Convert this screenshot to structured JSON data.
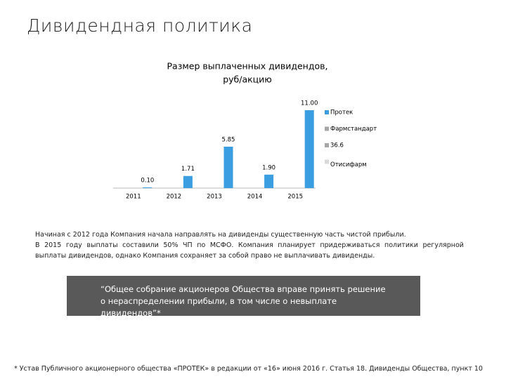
{
  "title": "Дивидендная политика",
  "chart_data": {
    "type": "bar",
    "title": [
      "Размер выплаченных дивидендов,",
      "руб/акцию"
    ],
    "categories": [
      "2011",
      "2012",
      "2013",
      "2014",
      "2015"
    ],
    "series": [
      {
        "name": "Протек",
        "color": "#3a9ee0",
        "values": [
          0.1,
          1.71,
          5.85,
          1.9,
          11
        ],
        "value_labels": [
          "0.10",
          "1.71",
          "5.85",
          "1.90",
          "11.00"
        ]
      },
      {
        "name": "Фармстандарт",
        "color": "#a6a6a6",
        "values": [
          null,
          null,
          null,
          null,
          null
        ]
      },
      {
        "name": "36.6",
        "color": "#a6a6a6",
        "values": [
          null,
          null,
          null,
          null,
          null
        ]
      },
      {
        "name": "Отисифарм",
        "color": "#d9d9d9",
        "values": [
          null,
          null,
          null,
          null,
          null
        ]
      }
    ],
    "ylim": [
      0,
      11
    ]
  },
  "text": [
    "Начиная с 2012 года Компания начала направлять на дивиденды существенную часть чистой прибыли.",
    "В 2015 году выплаты составили 50% ЧП по МСФО. Компания планирует придерживаться политики регулярной выплаты дивидендов, однако Компания сохраняет за собой право не выплачивать дивиденды."
  ],
  "quote": "“Общее собрание акционеров Общества вправе принять решение о нераспределении прибыли, в том числе о невыплате дивидендов”*",
  "footnote": "* Устав Публичного акционерного общества «ПРОТЕК» в редакции от «16» июня 2016 г. Статья 18. Дивиденды Общества, пункт 10"
}
